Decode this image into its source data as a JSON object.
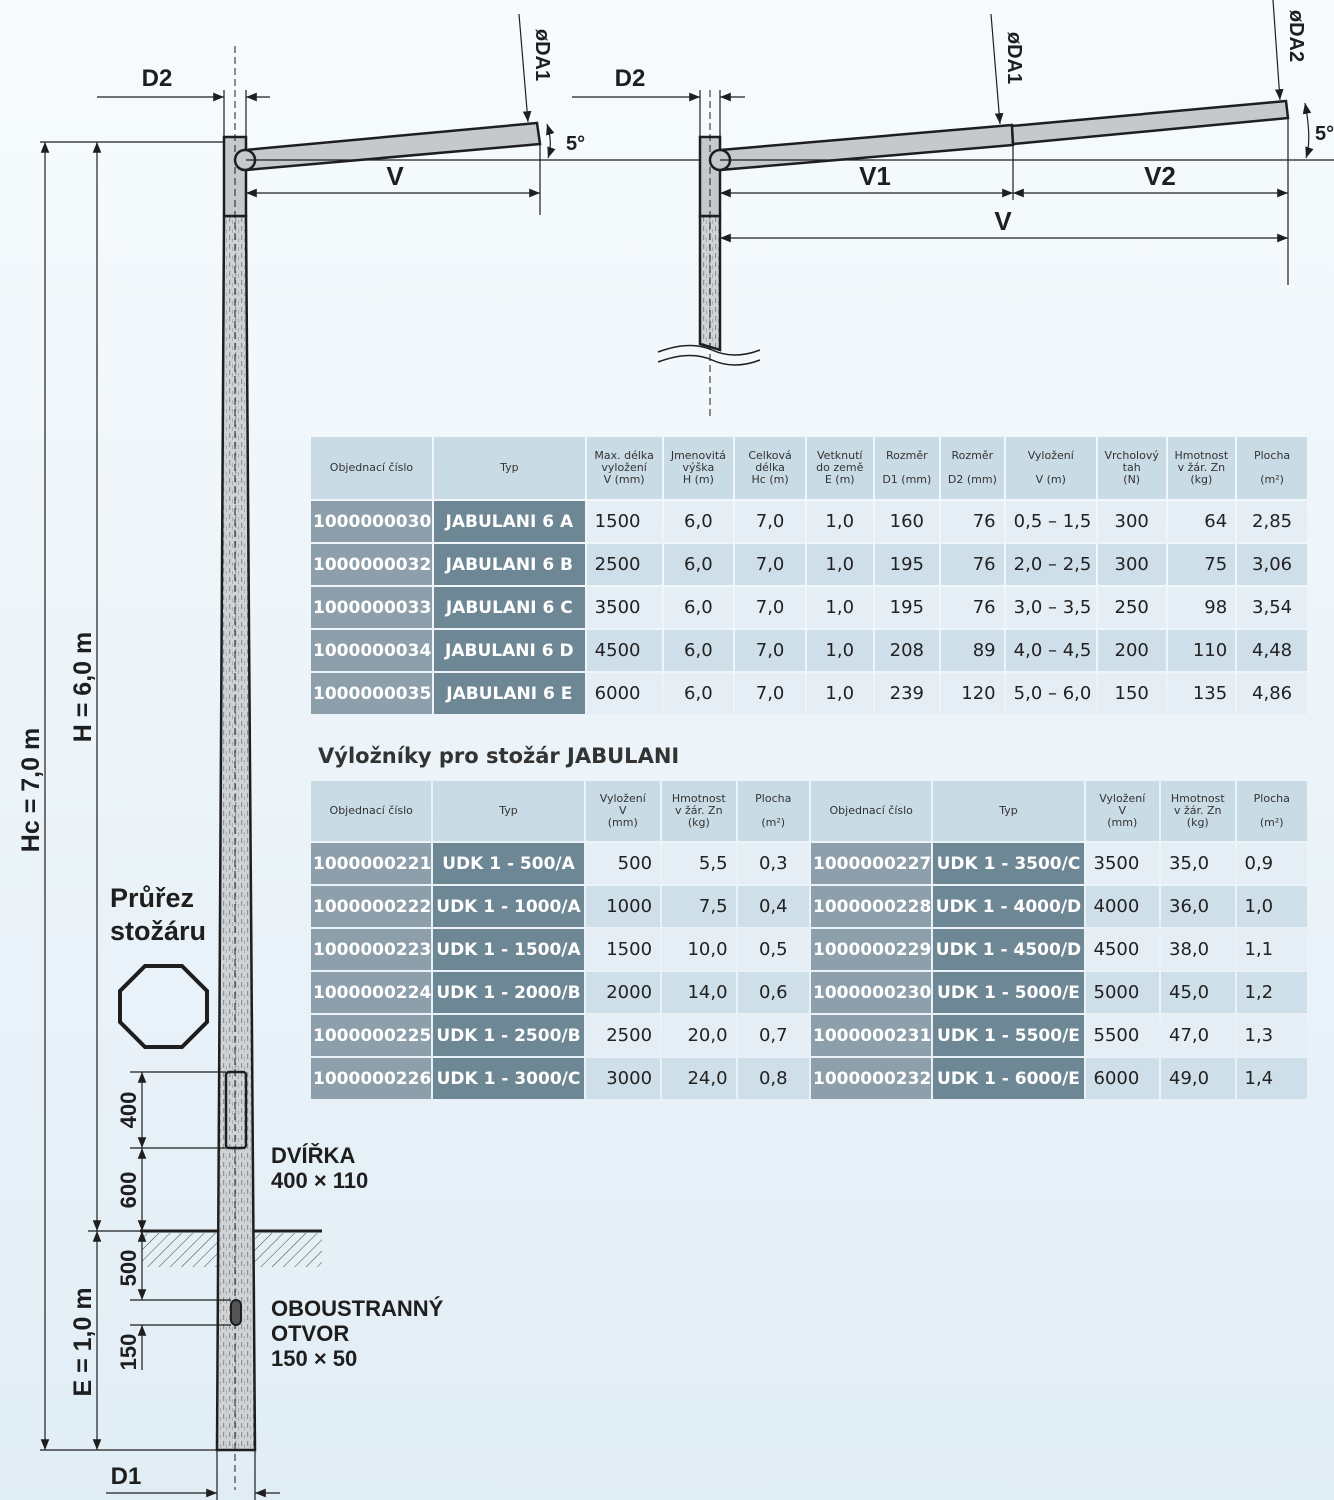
{
  "labels": {
    "d2_left": "D2",
    "d2_right": "D2",
    "da1_left": "øDA1",
    "da1_right": "øDA1",
    "da2": "øDA2",
    "angle_left": "5°",
    "angle_right": "5°",
    "v_left": "V",
    "v1": "V1",
    "v2": "V2",
    "v_total": "V",
    "hc": "Hc = 7,0 m",
    "h": "H = 6,0 m",
    "e": "E = 1,0 m",
    "d1": "D1",
    "dim_400": "400",
    "dim_600": "600",
    "dim_500": "500",
    "dim_150": "150",
    "door": "DVÍŘKA\n400 × 110",
    "hole": "OBOUSTRANNÝ\nOTVOR\n150 × 50",
    "cross_section": "Průřez\nstožáru"
  },
  "masts_table": {
    "headers": [
      {
        "lines": [
          "Objednací číslo"
        ]
      },
      {
        "lines": [
          "Typ"
        ]
      },
      {
        "lines": [
          "Max. délka",
          "vyložení",
          "V (mm)"
        ]
      },
      {
        "lines": [
          "Jmenovitá",
          "výška",
          "H (m)"
        ]
      },
      {
        "lines": [
          "Celková",
          "délka",
          "Hc (m)"
        ]
      },
      {
        "lines": [
          "Vetknutí",
          "do země",
          "E (m)"
        ]
      },
      {
        "lines": [
          "Rozměr",
          "",
          "D1 (mm)"
        ]
      },
      {
        "lines": [
          "Rozměr",
          "",
          "D2 (mm)"
        ]
      },
      {
        "lines": [
          "Vyložení",
          "",
          "V (m)"
        ]
      },
      {
        "lines": [
          "Vrcholový",
          "tah",
          "(N)"
        ]
      },
      {
        "lines": [
          "Hmotnost",
          "v žár. Zn",
          "(kg)"
        ]
      },
      {
        "lines": [
          "Plocha",
          "",
          "(m²)"
        ]
      }
    ],
    "rows": [
      [
        "1000000030",
        "JABULANI 6 A",
        "1500",
        "6,0",
        "7,0",
        "1,0",
        "160",
        "76",
        "0,5 – 1,5",
        "300",
        "64",
        "2,85"
      ],
      [
        "1000000032",
        "JABULANI 6 B",
        "2500",
        "6,0",
        "7,0",
        "1,0",
        "195",
        "76",
        "2,0 – 2,5",
        "300",
        "75",
        "3,06"
      ],
      [
        "1000000033",
        "JABULANI 6 C",
        "3500",
        "6,0",
        "7,0",
        "1,0",
        "195",
        "76",
        "3,0 – 3,5",
        "250",
        "98",
        "3,54"
      ],
      [
        "1000000034",
        "JABULANI 6 D",
        "4500",
        "6,0",
        "7,0",
        "1,0",
        "208",
        "89",
        "4,0 – 4,5",
        "200",
        "110",
        "4,48"
      ],
      [
        "1000000035",
        "JABULANI 6 E",
        "6000",
        "6,0",
        "7,0",
        "1,0",
        "239",
        "120",
        "5,0 – 6,0",
        "150",
        "135",
        "4,86"
      ]
    ]
  },
  "arms_title": "Výložníky pro stožár JABULANI",
  "arms_table": {
    "headers": [
      {
        "lines": [
          "Objednací číslo"
        ]
      },
      {
        "lines": [
          "Typ"
        ]
      },
      {
        "lines": [
          "Vyložení",
          "V",
          "(mm)"
        ]
      },
      {
        "lines": [
          "Hmotnost",
          "v žár. Zn",
          "(kg)"
        ]
      },
      {
        "lines": [
          "Plocha",
          "",
          "(m²)"
        ]
      },
      {
        "lines": [
          "Objednací číslo"
        ]
      },
      {
        "lines": [
          "Typ"
        ]
      },
      {
        "lines": [
          "Vyložení",
          "V",
          "(mm)"
        ]
      },
      {
        "lines": [
          "Hmotnost",
          "v žár. Zn",
          "(kg)"
        ]
      },
      {
        "lines": [
          "Plocha",
          "",
          "(m²)"
        ]
      }
    ],
    "rows": [
      [
        "1000000221",
        "UDK 1 - 500/A",
        "500",
        "5,5",
        "0,3",
        "1000000227",
        "UDK 1 - 3500/C",
        "3500",
        "35,0",
        "0,9"
      ],
      [
        "1000000222",
        "UDK 1 - 1000/A",
        "1000",
        "7,5",
        "0,4",
        "1000000228",
        "UDK 1 - 4000/D",
        "4000",
        "36,0",
        "1,0"
      ],
      [
        "1000000223",
        "UDK 1 - 1500/A",
        "1500",
        "10,0",
        "0,5",
        "1000000229",
        "UDK 1 - 4500/D",
        "4500",
        "38,0",
        "1,1"
      ],
      [
        "1000000224",
        "UDK 1 - 2000/B",
        "2000",
        "14,0",
        "0,6",
        "1000000230",
        "UDK 1 - 5000/E",
        "5000",
        "45,0",
        "1,2"
      ],
      [
        "1000000225",
        "UDK 1 - 2500/B",
        "2500",
        "20,0",
        "0,7",
        "1000000231",
        "UDK 1 - 5500/E",
        "5500",
        "47,0",
        "1,3"
      ],
      [
        "1000000226",
        "UDK 1 - 3000/C",
        "3000",
        "24,0",
        "0,8",
        "1000000232",
        "UDK 1 - 6000/E",
        "6000",
        "49,0",
        "1,4"
      ]
    ]
  }
}
